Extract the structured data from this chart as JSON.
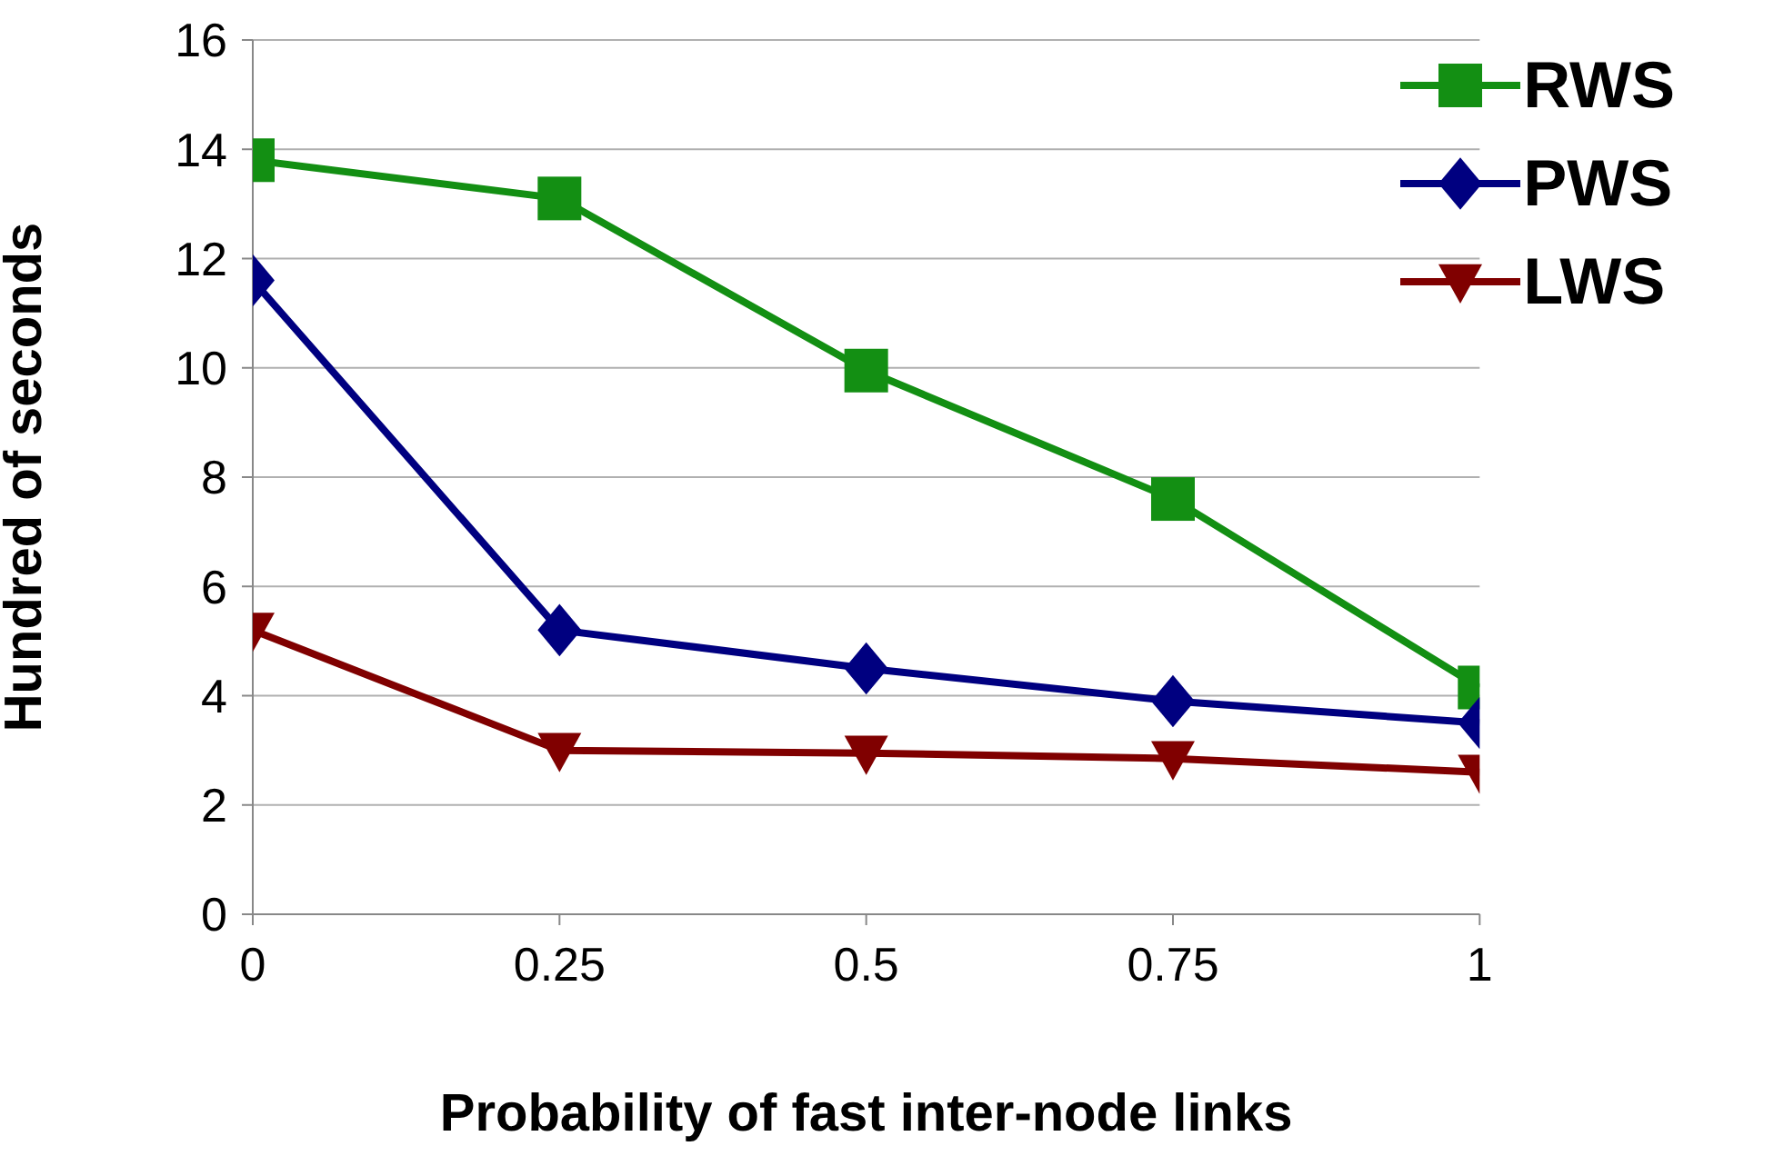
{
  "chart_data": {
    "type": "line",
    "xlabel": "Probability of fast inter-node links",
    "ylabel": "Hundred of seconds",
    "x": [
      0,
      0.25,
      0.5,
      0.75,
      1
    ],
    "xlim": [
      0,
      1
    ],
    "xticks": [
      0,
      0.25,
      0.5,
      0.75,
      1
    ],
    "ylim": [
      0,
      16
    ],
    "yticks": [
      0,
      2,
      4,
      6,
      8,
      10,
      12,
      14,
      16
    ],
    "grid": "y",
    "legend": "top right",
    "line_style": "solid",
    "series": [
      {
        "name": "RWS",
        "color": "#138f13",
        "marker": "square",
        "values": [
          13.8,
          13.1,
          9.95,
          7.6,
          4.15
        ]
      },
      {
        "name": "PWS",
        "color": "#000080",
        "marker": "diamond",
        "values": [
          11.6,
          5.2,
          4.5,
          3.9,
          3.5
        ]
      },
      {
        "name": "LWS",
        "color": "#800000",
        "marker": "triangle",
        "values": [
          5.2,
          3.0,
          2.95,
          2.85,
          2.6
        ]
      }
    ]
  }
}
